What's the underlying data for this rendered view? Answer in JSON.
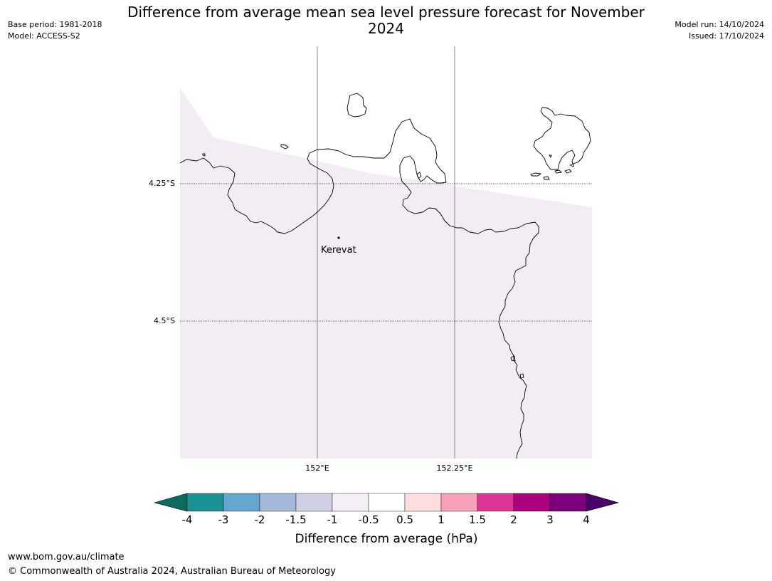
{
  "title": "Difference from average mean sea level pressure forecast for November 2024",
  "meta_left": {
    "base_period": "Base period: 1981-2018",
    "model": "Model: ACCESS-S2"
  },
  "meta_right": {
    "model_run": "Model run: 14/10/2024",
    "issued": "Issued: 17/10/2024"
  },
  "map": {
    "lat_labels": [
      "4.25°S",
      "4.5°S"
    ],
    "lon_labels": [
      "152°E",
      "152.25°E"
    ],
    "place_label": "Kerevat",
    "anomaly_fill_color": "#f3ecf5",
    "coastline_color": "#000000"
  },
  "colorbar": {
    "label": "Difference from average (hPa)",
    "ticks": [
      "-4",
      "-3",
      "-2",
      "-1.5",
      "-1",
      "-0.5",
      "0.5",
      "1",
      "1.5",
      "2",
      "3",
      "4"
    ],
    "colors": [
      "#1a9293",
      "#63a6cf",
      "#a6b8da",
      "#d0d0e4",
      "#f6eef7",
      "#ffffff",
      "#fddddf",
      "#f8a0b8",
      "#dc3595",
      "#ac017e",
      "#7c007c"
    ],
    "under_color": "#0a6c5e",
    "over_color": "#4b006a"
  },
  "footer": {
    "url": "www.bom.gov.au/climate",
    "copyright": "© Commonwealth of Australia 2024, Australian Bureau of Meteorology"
  }
}
